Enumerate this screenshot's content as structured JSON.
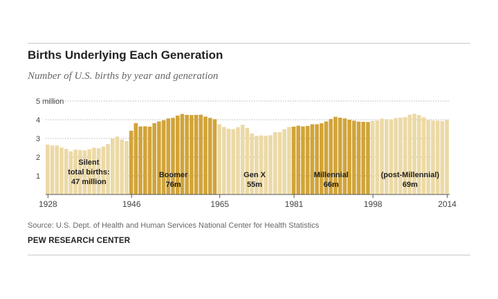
{
  "header": {
    "title": "Births Underlying Each Generation",
    "subtitle": "Number of U.S. births by year and generation"
  },
  "footer": {
    "source": "Source: U.S. Dept. of Health and Human Services National Center for Health Statistics",
    "org": "PEW RESEARCH CENTER"
  },
  "colors": {
    "light": "#ecd9a6",
    "dark": "#d1a43a",
    "grid": "#999999",
    "axis": "#555555"
  },
  "chart_data": {
    "type": "bar",
    "title": "Births Underlying Each Generation",
    "subtitle": "Number of U.S. births by year and generation",
    "ylabel": "",
    "xlabel": "",
    "unit": "million",
    "ylim": [
      0,
      5
    ],
    "yticks": [
      1,
      2,
      3,
      4,
      5
    ],
    "ytick_labels": [
      "1",
      "2",
      "3",
      "4",
      "5 million"
    ],
    "xticks": [
      1928,
      1946,
      1965,
      1981,
      1998,
      2014
    ],
    "x_start": 1928,
    "values": [
      2.67,
      2.62,
      2.62,
      2.51,
      2.44,
      2.31,
      2.4,
      2.38,
      2.36,
      2.42,
      2.5,
      2.47,
      2.56,
      2.7,
      2.99,
      3.1,
      2.94,
      2.86,
      3.41,
      3.82,
      3.64,
      3.65,
      3.63,
      3.82,
      3.91,
      3.97,
      4.07,
      4.1,
      4.22,
      4.31,
      4.26,
      4.25,
      4.26,
      4.27,
      4.17,
      4.1,
      4.03,
      3.76,
      3.61,
      3.52,
      3.5,
      3.6,
      3.73,
      3.56,
      3.26,
      3.14,
      3.16,
      3.14,
      3.17,
      3.33,
      3.33,
      3.49,
      3.61,
      3.63,
      3.68,
      3.64,
      3.67,
      3.76,
      3.76,
      3.81,
      3.91,
      4.04,
      4.16,
      4.11,
      4.07,
      4.0,
      3.95,
      3.9,
      3.89,
      3.88,
      3.94,
      3.96,
      4.06,
      4.03,
      4.02,
      4.09,
      4.11,
      4.14,
      4.27,
      4.32,
      4.25,
      4.13,
      4.0,
      3.95,
      3.95,
      3.93,
      3.99
    ],
    "generations": [
      {
        "name": "Silent",
        "start": 1928,
        "end": 1945,
        "label_lines": [
          "Silent",
          "total births:",
          "47 million"
        ],
        "shade": "light"
      },
      {
        "name": "Boomer",
        "start": 1946,
        "end": 1964,
        "label_lines": [
          "Boomer",
          "76m"
        ],
        "shade": "dark"
      },
      {
        "name": "Gen X",
        "start": 1965,
        "end": 1980,
        "label_lines": [
          "Gen X",
          "55m"
        ],
        "shade": "light"
      },
      {
        "name": "Millennial",
        "start": 1981,
        "end": 1997,
        "label_lines": [
          "Millennial",
          "66m"
        ],
        "shade": "dark"
      },
      {
        "name": "(post-Millennial)",
        "start": 1998,
        "end": 2014,
        "label_lines": [
          "(post-Millennial)",
          "69m"
        ],
        "shade": "light"
      }
    ],
    "grid": true,
    "legend": "none"
  }
}
